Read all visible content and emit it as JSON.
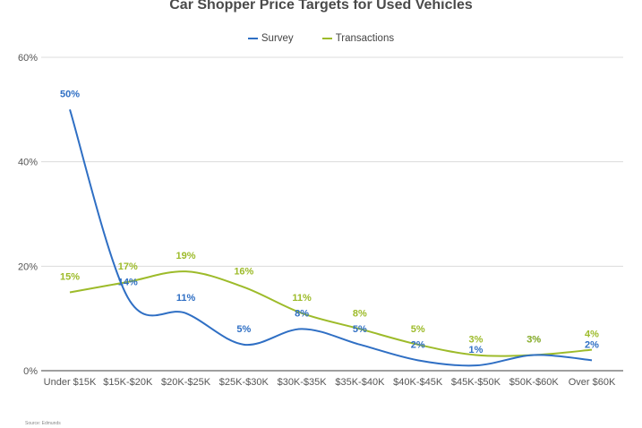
{
  "chart_data": {
    "type": "line",
    "title": "Car Shopper Price Targets for Used Vehicles",
    "xlabel": "",
    "ylabel": "",
    "categories": [
      "Under $15K",
      "$15K-$20K",
      "$20K-$25K",
      "$25K-$30K",
      "$30K-$35K",
      "$35K-$40K",
      "$40K-$45K",
      "$45K-$50K",
      "$50K-$60K",
      "Over $60K"
    ],
    "series": [
      {
        "name": "Survey",
        "color": "#2f6fc4",
        "values": [
          50,
          14,
          11,
          5,
          8,
          5,
          2,
          1,
          3,
          2
        ]
      },
      {
        "name": "Transactions",
        "color": "#9dbb2a",
        "values": [
          15,
          17,
          19,
          16,
          11,
          8,
          5,
          3,
          3,
          4
        ]
      }
    ],
    "ylim": [
      0,
      60
    ],
    "yticks": [
      0,
      20,
      40,
      60
    ],
    "ytick_labels": [
      "0%",
      "20%",
      "40%",
      "60%"
    ],
    "grid": true,
    "legend_position": "top-center",
    "data_labels": true,
    "smooth": true
  },
  "source": "Source: Edmunds"
}
